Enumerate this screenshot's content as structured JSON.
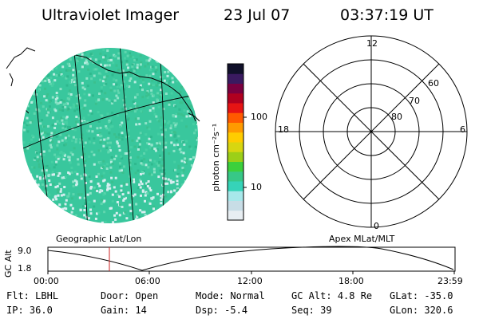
{
  "header": {
    "title": "Ultraviolet Imager",
    "date": "23 Jul 07",
    "time": "03:37:19 UT"
  },
  "left_panel": {
    "label": "Geographic Lat/Lon"
  },
  "colorbar": {
    "unit_label": "photon cm⁻²s⁻¹",
    "tick_labels": [
      "100",
      "10"
    ],
    "colors": [
      "#e8eef2",
      "#c8dde6",
      "#a7e8ea",
      "#36d3b8",
      "#37c887",
      "#3cd03c",
      "#9ccf18",
      "#d8d610",
      "#ffcc00",
      "#ff9a00",
      "#ff5a00",
      "#e61414",
      "#b00020",
      "#7a0040",
      "#3a1a60",
      "#10102a"
    ]
  },
  "right_panel": {
    "label": "Apex MLat/MLT",
    "mlt_labels": {
      "top": "12",
      "left": "18",
      "right": "6",
      "bottom": "0"
    },
    "mlat_labels": [
      "60",
      "70",
      "80"
    ]
  },
  "timeline": {
    "ylabel": "GC Alt",
    "y_ticks": [
      "9.0",
      "1.8"
    ],
    "x_ticks": [
      "00:00",
      "06:00",
      "12:00",
      "18:00",
      "23:59"
    ],
    "marker_time": "03:37:19",
    "marker_color": "#cc2222"
  },
  "status": {
    "flt_label": "Flt:",
    "flt": "LBHL",
    "door_label": "Door:",
    "door": "Open",
    "mode_label": "Mode:",
    "mode": "Normal",
    "gcalt_label": "GC Alt:",
    "gcalt": "4.8 Re",
    "glat_label": "GLat:",
    "glat": "-35.0",
    "ip_label": "IP:",
    "ip": "36.0",
    "gain_label": "Gain:",
    "gain": "14",
    "dsp_label": "Dsp:",
    "dsp": "-5.4",
    "seq_label": "Seq:",
    "seq": "39",
    "glon_label": "GLon:",
    "glon": "320.6"
  }
}
